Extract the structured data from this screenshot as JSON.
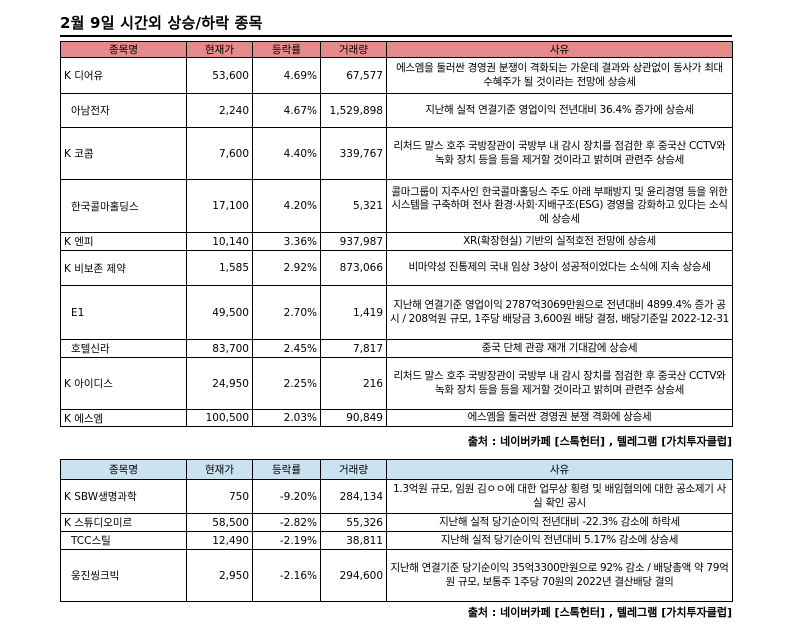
{
  "title": "2월 9일  시간외 상승/하락 종목",
  "headers": [
    "종목명",
    "현재가",
    "등락률",
    "거래량",
    "사유"
  ],
  "rise_rows": [
    {
      "name": "K 디어유",
      "price": "53,600",
      "change": "4.69%",
      "volume": "67,577",
      "reason": "에스엠을 둘러싼 경영권 분쟁이 격화되는 가운데 결과와 상관없이 동사가 최대 수혜주가 될 것이라는 전망에 상승세"
    },
    {
      "name": "아남전자",
      "price": "2,240",
      "change": "4.67%",
      "volume": "1,529,898",
      "reason": "지난해 실적 연결기준 영업이익 전년대비 36.4% 증가에 상승세"
    },
    {
      "name": "K 코콤",
      "price": "7,600",
      "change": "4.40%",
      "volume": "339,767",
      "reason": "리처드 말스 호주 국방장관이 국방부 내 감시 장치를 점검한 후 중국산 CCTV와 녹화 장치 등을 등을 제거할 것이라고 밝히며 관련주 상승세"
    },
    {
      "name": "한국콜마홀딩스",
      "price": "17,100",
      "change": "4.20%",
      "volume": "5,321",
      "reason": "콜마그룹이 지주사인 한국콜마홀딩스 주도 아래 부패방지 및 윤리경영 등을 위한 시스템을 구축하며 전사 환경·사회·지배구조(ESG) 경영을 강화하고 있다는 소식에 상승세"
    },
    {
      "name": "K 엔피",
      "price": "10,140",
      "change": "3.36%",
      "volume": "937,987",
      "reason": "XR(확장현실) 기반의 실적호전 전망에 상승세"
    },
    {
      "name": "K 비보존 제약",
      "price": "1,585",
      "change": "2.92%",
      "volume": "873,066",
      "reason": "비마약성 진통제의 국내 임상 3상이 성공적이었다는 소식에 지속 상승세"
    },
    {
      "name": "E1",
      "price": "49,500",
      "change": "2.70%",
      "volume": "1,419",
      "reason": "지난해 연결기준 영업이익 2787억3069만원으로 전년대비 4899.4% 증가 공시 / 208억원 규모, 1주당 배당금 3,600원 배당 결정, 배당기준일 2022-12-31"
    },
    {
      "name": "호텔신라",
      "price": "83,700",
      "change": "2.45%",
      "volume": "7,817",
      "reason": "중국 단체 관광 재개 기대감에 상승세"
    },
    {
      "name": "K 아이디스",
      "price": "24,950",
      "change": "2.25%",
      "volume": "216",
      "reason": "리처드 말스 호주 국방장관이 국방부 내 감시 장치를 점검한 후 중국산 CCTV와 녹화 장치 등을 등을 제거할 것이라고 밝히며 관련주 상승세"
    },
    {
      "name": "K 에스엠",
      "price": "100,500",
      "change": "2.03%",
      "volume": "90,849",
      "reason": "에스엠을 둘러싼 경영권 분쟁 격화에 상승세"
    }
  ],
  "fall_rows": [
    {
      "name": "K SBW생명과학",
      "price": "750",
      "change": "-9.20%",
      "volume": "284,134",
      "reason": "1.3억원 규모, 임원 김ㅇㅇ에 대한 업무상 횡령 및 배임혐의에 대한 공소제기 사실 확인 공시"
    },
    {
      "name": "K 스튜디오미르",
      "price": "58,500",
      "change": "-2.82%",
      "volume": "55,326",
      "reason": "지난해 실적 당기순이익 전년대비 -22.3% 감소에 하락세"
    },
    {
      "name": "TCC스틸",
      "price": "12,490",
      "change": "-2.19%",
      "volume": "38,811",
      "reason": "지난해 실적 당기순이익 전년대비 5.17% 감소에 상승세"
    },
    {
      "name": "웅진씽크빅",
      "price": "2,950",
      "change": "-2.16%",
      "volume": "294,600",
      "reason": "지난해 연결기준 당기순이익 35억3300만원으로 92% 감소 / 배당총액 약 79억 원 규모, 보통주 1주당 70원의 2022년 결산배당 결의"
    }
  ],
  "source": "출처 : 네이버카페 [스톡헌터] , 텔레그램 [가치투자클럽]"
}
